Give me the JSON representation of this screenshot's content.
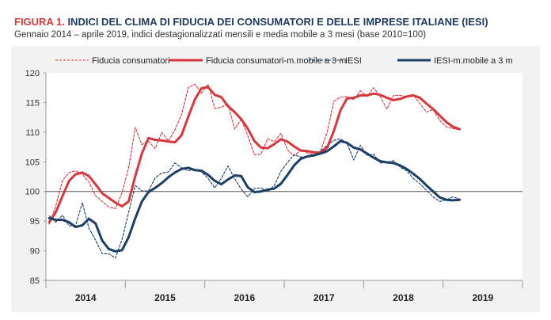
{
  "header": {
    "figure_label": "FIGURA 1.",
    "title": "INDICI DEL CLIMA DI FIDUCIA DEI CONSUMATORI E DELLE IMPRESE ITALIANE (IESI)",
    "subtitle": "Gennaio 2014 – aprile 2019, indici destagionalizzati mensili e media mobile a 3 mesi (base 2010=100)"
  },
  "colors": {
    "panel": "#f2f2f2",
    "red": "#d9363e",
    "navy": "#1b3f66",
    "baseline": "#555555"
  },
  "chart_data": {
    "type": "line",
    "start": "2014-01",
    "frequency": "monthly",
    "ylim": [
      85,
      120
    ],
    "yticks": [
      85,
      90,
      95,
      100,
      105,
      110,
      115,
      120
    ],
    "reference_line": 100,
    "x_labels": [
      "2014",
      "2015",
      "2016",
      "2017",
      "2018",
      "2019"
    ],
    "legend_position": "top",
    "series": [
      {
        "name": "Fiducia consumatori",
        "style": "dashed",
        "color": "#d9363e",
        "values": [
          94.5,
          97.6,
          101.8,
          103.2,
          103.5,
          102.9,
          101.6,
          99.3,
          98.3,
          97.4,
          97.1,
          99.8,
          104.0,
          110.8,
          107.9,
          108.5,
          107.2,
          110.0,
          108.5,
          110.4,
          113.0,
          117.5,
          118.1,
          116.6,
          118.1,
          114.0,
          114.2,
          114.8,
          110.5,
          112.2,
          109.4,
          106.2,
          106.3,
          108.9,
          108.4,
          109.8,
          107.0,
          106.0,
          107.0,
          106.5,
          106.2,
          106.9,
          110.0,
          115.2,
          115.9,
          116.0,
          115.5,
          117.0,
          116.0,
          117.5,
          116.0,
          113.9,
          116.2,
          116.2,
          116.0,
          116.3,
          114.8,
          113.4,
          113.8,
          112.0,
          110.9,
          110.6,
          110.4
        ]
      },
      {
        "name": "Fiducia consumatori-m.mobile a 3 m",
        "style": "solid",
        "color": "#d9363e",
        "values": [
          94.8,
          96.5,
          99.2,
          101.8,
          102.9,
          103.2,
          102.6,
          101.2,
          99.7,
          98.9,
          98.1,
          97.5,
          98.3,
          102.6,
          106.4,
          109.0,
          108.7,
          108.6,
          108.4,
          108.3,
          109.5,
          112.6,
          115.5,
          117.4,
          117.6,
          116.3,
          115.9,
          114.4,
          113.4,
          112.2,
          110.6,
          108.5,
          107.4,
          107.3,
          108.0,
          108.8,
          108.4,
          107.6,
          106.9,
          106.8,
          106.6,
          106.5,
          107.4,
          110.2,
          113.7,
          115.7,
          115.8,
          116.2,
          116.2,
          116.5,
          116.3,
          115.8,
          115.4,
          115.6,
          116.0,
          116.2,
          115.8,
          114.8,
          113.9,
          112.8,
          111.7,
          110.9,
          110.5
        ]
      },
      {
        "name": "IESI",
        "style": "dashed",
        "color": "#1b3f66",
        "values": [
          95.9,
          94.8,
          96.0,
          94.2,
          94.3,
          98.1,
          93.8,
          91.8,
          89.5,
          89.5,
          88.8,
          91.9,
          96.5,
          101.0,
          100.1,
          100.1,
          102.3,
          103.1,
          103.3,
          104.8,
          104.0,
          103.5,
          103.7,
          103.3,
          102.2,
          100.6,
          102.2,
          104.3,
          102.2,
          100.4,
          99.1,
          100.5,
          100.6,
          100.0,
          101.0,
          103.4,
          104.9,
          106.2,
          105.8,
          105.9,
          105.9,
          106.8,
          107.8,
          108.6,
          108.9,
          108.1,
          105.3,
          107.8,
          106.1,
          106.3,
          104.8,
          104.9,
          105.2,
          104.1,
          103.5,
          102.2,
          101.3,
          100.2,
          99.1,
          98.3,
          98.6,
          99.1,
          98.7
        ]
      },
      {
        "name": "IESI-m.mobile a 3 m",
        "style": "solid",
        "color": "#1b3f66",
        "values": [
          95.5,
          95.2,
          95.2,
          94.8,
          94.0,
          94.3,
          95.4,
          94.6,
          91.7,
          90.3,
          89.9,
          90.1,
          92.3,
          95.5,
          98.3,
          99.9,
          100.6,
          101.4,
          102.4,
          103.2,
          103.8,
          104.0,
          103.6,
          103.5,
          102.8,
          101.8,
          101.2,
          102.0,
          102.7,
          102.6,
          100.7,
          99.9,
          100.0,
          100.3,
          100.5,
          101.3,
          102.8,
          104.4,
          105.5,
          105.9,
          106.1,
          106.4,
          106.8,
          107.6,
          108.5,
          108.2,
          107.4,
          107.1,
          106.4,
          105.7,
          105.1,
          104.9,
          104.8,
          104.4,
          103.8,
          103.0,
          102.1,
          101.0,
          100.0,
          99.0,
          98.6,
          98.5,
          98.6
        ]
      }
    ]
  }
}
